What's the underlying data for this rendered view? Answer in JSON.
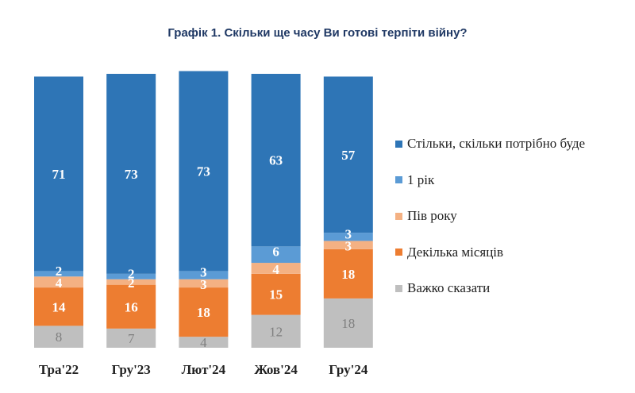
{
  "title": "Графік 1. Скільки ще часу Ви готові терпіти війну?",
  "colors": {
    "all_needed": "#2e75b6",
    "one_year": "#5b9bd5",
    "half_year": "#f4b183",
    "few_months": "#ed7d31",
    "hard_to_say": "#bfbfbf"
  },
  "chart_data": {
    "type": "bar",
    "stacked": true,
    "title": "Графік 1. Скільки ще часу Ви готові терпіти війну?",
    "categories": [
      "Тра'22",
      "Гру'23",
      "Лют'24",
      "Жов'24",
      "Гру'24"
    ],
    "series": [
      {
        "name": "Важко сказати",
        "key": "hard_to_say",
        "values": [
          8,
          7,
          4,
          12,
          18
        ]
      },
      {
        "name": "Декілька місяців",
        "key": "few_months",
        "values": [
          14,
          16,
          18,
          15,
          18
        ]
      },
      {
        "name": "Пів року",
        "key": "half_year",
        "values": [
          4,
          2,
          3,
          4,
          3
        ]
      },
      {
        "name": "1 рік",
        "key": "one_year",
        "values": [
          2,
          2,
          3,
          6,
          3
        ]
      },
      {
        "name": "Стільки, скільки потрібно буде",
        "key": "all_needed",
        "values": [
          71,
          73,
          73,
          63,
          57
        ]
      }
    ],
    "legend_order": [
      "all_needed",
      "one_year",
      "half_year",
      "few_months",
      "hard_to_say"
    ],
    "legend_position": "right",
    "ylim": [
      0,
      100
    ],
    "grid": false
  }
}
